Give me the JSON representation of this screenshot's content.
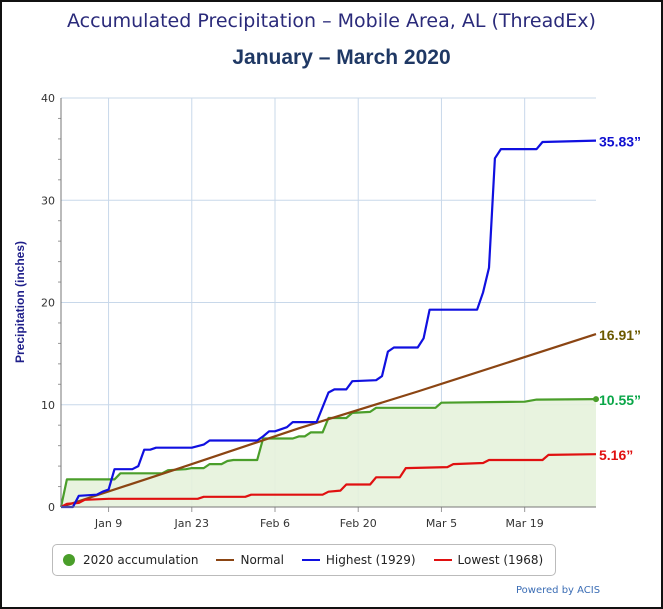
{
  "chart_data": {
    "type": "line",
    "title": "Accumulated Precipitation – Mobile Area, AL (ThreadEx)",
    "subtitle": "January – March  2020",
    "ylabel": "Precipitation (inches)",
    "xlabel": "",
    "ylim": [
      0,
      40
    ],
    "xlim": [
      "2020-01-01",
      "2020-03-31"
    ],
    "yticks": [
      0,
      10,
      20,
      30,
      40
    ],
    "xticks": [
      {
        "date": "2020-01-09",
        "label": "Jan 9"
      },
      {
        "date": "2020-01-23",
        "label": "Jan 23"
      },
      {
        "date": "2020-02-06",
        "label": "Feb 6"
      },
      {
        "date": "2020-02-20",
        "label": "Feb 20"
      },
      {
        "date": "2020-03-05",
        "label": "Mar 5"
      },
      {
        "date": "2020-03-19",
        "label": "Mar 19"
      }
    ],
    "grid": true,
    "legend_position": "bottom",
    "series": [
      {
        "name": "2020 accumulation",
        "color": "#4a9e2a",
        "fill": "#e6f2dc",
        "marker": "dot",
        "end_label": "10.55”",
        "end_label_color": "#0aa648",
        "points": [
          [
            "2020-01-01",
            0
          ],
          [
            "2020-01-02",
            2.7
          ],
          [
            "2020-01-10",
            2.7
          ],
          [
            "2020-01-11",
            3.3
          ],
          [
            "2020-01-18",
            3.3
          ],
          [
            "2020-01-19",
            3.6
          ],
          [
            "2020-01-22",
            3.7
          ],
          [
            "2020-01-23",
            3.8
          ],
          [
            "2020-01-25",
            3.8
          ],
          [
            "2020-01-26",
            4.2
          ],
          [
            "2020-01-28",
            4.2
          ],
          [
            "2020-01-29",
            4.5
          ],
          [
            "2020-01-30",
            4.6
          ],
          [
            "2020-02-03",
            4.6
          ],
          [
            "2020-02-04",
            6.7
          ],
          [
            "2020-02-09",
            6.7
          ],
          [
            "2020-02-10",
            6.9
          ],
          [
            "2020-02-11",
            6.9
          ],
          [
            "2020-02-12",
            7.3
          ],
          [
            "2020-02-14",
            7.3
          ],
          [
            "2020-02-15",
            8.7
          ],
          [
            "2020-02-18",
            8.7
          ],
          [
            "2020-02-19",
            9.2
          ],
          [
            "2020-02-22",
            9.3
          ],
          [
            "2020-02-23",
            9.7
          ],
          [
            "2020-03-04",
            9.7
          ],
          [
            "2020-03-05",
            10.2
          ],
          [
            "2020-03-19",
            10.3
          ],
          [
            "2020-03-21",
            10.5
          ],
          [
            "2020-03-31",
            10.55
          ]
        ]
      },
      {
        "name": "Normal",
        "color": "#8b4513",
        "end_label": "16.91”",
        "end_label_color": "#6b5a00",
        "points": [
          [
            "2020-01-01",
            0
          ],
          [
            "2020-01-21",
            3.8
          ],
          [
            "2020-02-10",
            7.7
          ],
          [
            "2020-03-01",
            11.3
          ],
          [
            "2020-03-31",
            16.91
          ]
        ]
      },
      {
        "name": "Highest (1929)",
        "color": "#1010e0",
        "end_label": "35.83”",
        "end_label_color": "#1010d0",
        "points": [
          [
            "2020-01-01",
            0
          ],
          [
            "2020-01-03",
            0
          ],
          [
            "2020-01-04",
            1.1
          ],
          [
            "2020-01-07",
            1.2
          ],
          [
            "2020-01-08",
            1.5
          ],
          [
            "2020-01-09",
            1.7
          ],
          [
            "2020-01-10",
            3.7
          ],
          [
            "2020-01-13",
            3.7
          ],
          [
            "2020-01-14",
            4.0
          ],
          [
            "2020-01-15",
            5.6
          ],
          [
            "2020-01-16",
            5.6
          ],
          [
            "2020-01-17",
            5.8
          ],
          [
            "2020-01-23",
            5.8
          ],
          [
            "2020-01-25",
            6.1
          ],
          [
            "2020-01-26",
            6.5
          ],
          [
            "2020-02-03",
            6.5
          ],
          [
            "2020-02-04",
            6.9
          ],
          [
            "2020-02-05",
            7.4
          ],
          [
            "2020-02-06",
            7.4
          ],
          [
            "2020-02-08",
            7.8
          ],
          [
            "2020-02-09",
            8.3
          ],
          [
            "2020-02-13",
            8.3
          ],
          [
            "2020-02-15",
            11.2
          ],
          [
            "2020-02-16",
            11.5
          ],
          [
            "2020-02-18",
            11.5
          ],
          [
            "2020-02-19",
            12.3
          ],
          [
            "2020-02-23",
            12.4
          ],
          [
            "2020-02-24",
            12.8
          ],
          [
            "2020-02-25",
            15.2
          ],
          [
            "2020-02-26",
            15.6
          ],
          [
            "2020-03-01",
            15.6
          ],
          [
            "2020-03-02",
            16.5
          ],
          [
            "2020-03-03",
            19.3
          ],
          [
            "2020-03-11",
            19.3
          ],
          [
            "2020-03-12",
            21.0
          ],
          [
            "2020-03-13",
            23.4
          ],
          [
            "2020-03-14",
            34.1
          ],
          [
            "2020-03-15",
            35.0
          ],
          [
            "2020-03-21",
            35.0
          ],
          [
            "2020-03-22",
            35.7
          ],
          [
            "2020-03-31",
            35.83
          ]
        ]
      },
      {
        "name": "Lowest (1968)",
        "color": "#e01010",
        "end_label": "5.16”",
        "end_label_color": "#e01010",
        "points": [
          [
            "2020-01-01",
            0
          ],
          [
            "2020-01-02",
            0.3
          ],
          [
            "2020-01-04",
            0.4
          ],
          [
            "2020-01-05",
            0.7
          ],
          [
            "2020-01-09",
            0.8
          ],
          [
            "2020-01-24",
            0.8
          ],
          [
            "2020-01-25",
            1.0
          ],
          [
            "2020-02-01",
            1.0
          ],
          [
            "2020-02-02",
            1.2
          ],
          [
            "2020-02-14",
            1.2
          ],
          [
            "2020-02-15",
            1.5
          ],
          [
            "2020-02-17",
            1.6
          ],
          [
            "2020-02-18",
            2.2
          ],
          [
            "2020-02-22",
            2.2
          ],
          [
            "2020-02-23",
            2.9
          ],
          [
            "2020-02-27",
            2.9
          ],
          [
            "2020-02-28",
            3.8
          ],
          [
            "2020-03-06",
            3.9
          ],
          [
            "2020-03-07",
            4.2
          ],
          [
            "2020-03-12",
            4.3
          ],
          [
            "2020-03-13",
            4.6
          ],
          [
            "2020-03-22",
            4.6
          ],
          [
            "2020-03-23",
            5.1
          ],
          [
            "2020-03-31",
            5.16
          ]
        ]
      }
    ]
  },
  "footer": {
    "credit": "Powered by ACIS"
  }
}
